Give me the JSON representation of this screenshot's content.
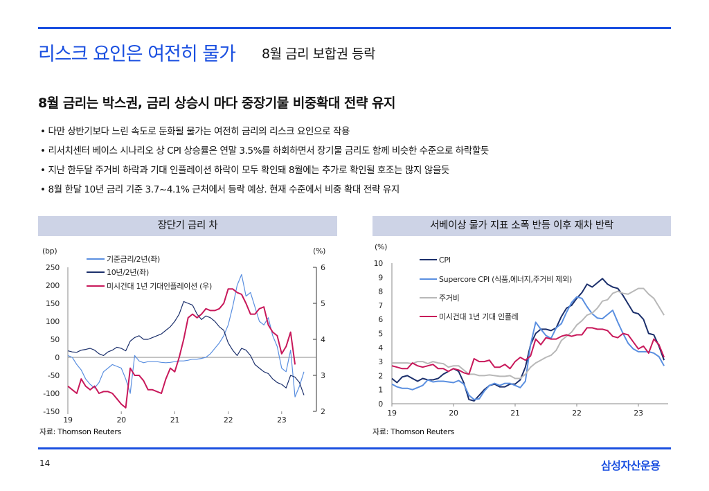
{
  "header": {
    "title_main": "리스크 요인은 여전히 물가",
    "title_sub": "8월 금리 보합권 등락",
    "subtitle": "8월 금리는 박스권, 금리 상승시 마다 중장기물 비중확대 전략 유지"
  },
  "bullets": [
    "• 다만 상반기보다 느린 속도로 둔화될 물가는 여전히 금리의 리스크 요인으로 작용",
    "• 리서치센터 베이스 시나리오 상 CPI 상승률은 연말 3.5%를 하회하면서 장기물 금리도 함께 비슷한 수준으로 하락할듯",
    "• 지난 한두달 주거비 하락과 기대 인플레이션 하락이 모두 확인돼 8월에는 추가로 확인될 호조는 많지 않을듯",
    "• 8월 한달 10년 금리 기준 3.7~4.1% 근처에서 등락 예상. 현재 수준에서 비중 확대 전략 유지"
  ],
  "footer": {
    "page": "14",
    "logo": "삼성자산운용"
  },
  "colors": {
    "accent": "#1a4fe0",
    "navy": "#1b2f6b",
    "light_blue": "#5a8fe0",
    "crimson": "#c8185a",
    "gray": "#b8b8b8",
    "header_bg": "#cdd3e6"
  },
  "chart_data": [
    {
      "type": "line",
      "title": "장단기 금리 차",
      "source": "자료: Thomson Reuters",
      "left_unit": "(bp)",
      "right_unit": "(%)",
      "x_ticks": [
        "19",
        "20",
        "21",
        "22",
        "23"
      ],
      "x_tick_values": [
        19,
        20,
        21,
        22,
        23
      ],
      "x_start": 19,
      "frequency": "monthly",
      "ylim_left": [
        -150,
        250
      ],
      "y_ticks_left": [
        250,
        200,
        150,
        100,
        50,
        0,
        -50,
        -100,
        -150
      ],
      "ylim_right": [
        2,
        6
      ],
      "y_ticks_right": [
        6,
        5,
        4,
        3,
        2
      ],
      "series": [
        {
          "name": "기준금리/2년(좌)",
          "axis": "left",
          "color": "#5a8fe0",
          "values": [
            5,
            0,
            -20,
            -35,
            -60,
            -75,
            -85,
            -70,
            -40,
            -30,
            -20,
            -25,
            -30,
            -60,
            -100,
            5,
            -10,
            -15,
            -12,
            -12,
            -12,
            -14,
            -15,
            -14,
            -12,
            -10,
            -10,
            -8,
            -5,
            -5,
            -3,
            0,
            10,
            25,
            40,
            60,
            90,
            140,
            200,
            230,
            170,
            180,
            140,
            100,
            90,
            110,
            60,
            30,
            -30,
            -40,
            20,
            -110,
            -80,
            -40
          ]
        },
        {
          "name": "10년/2년(좌)",
          "axis": "left",
          "color": "#1b2f6b",
          "values": [
            18,
            15,
            14,
            20,
            22,
            25,
            20,
            10,
            5,
            15,
            20,
            28,
            25,
            18,
            45,
            55,
            60,
            50,
            50,
            55,
            60,
            65,
            75,
            85,
            100,
            120,
            155,
            150,
            145,
            120,
            105,
            115,
            110,
            100,
            85,
            75,
            40,
            20,
            5,
            25,
            20,
            5,
            -20,
            -30,
            -40,
            -45,
            -60,
            -70,
            -75,
            -85,
            -50,
            -55,
            -70,
            -105
          ]
        },
        {
          "name": "미시건대 1년 기대인플레이션 (우)",
          "axis": "right",
          "color": "#c8185a",
          "values": [
            2.7,
            2.6,
            2.5,
            2.9,
            2.7,
            2.6,
            2.7,
            2.5,
            2.55,
            2.55,
            2.5,
            2.35,
            2.2,
            2.1,
            3.2,
            3.0,
            3.0,
            2.85,
            2.6,
            2.6,
            2.55,
            2.5,
            2.9,
            3.2,
            3.1,
            3.5,
            4.0,
            4.6,
            4.7,
            4.6,
            4.7,
            4.85,
            4.8,
            4.8,
            4.85,
            5.0,
            5.4,
            5.4,
            5.3,
            5.25,
            5.0,
            4.7,
            4.7,
            4.85,
            4.9,
            4.4,
            4.2,
            4.1,
            3.6,
            3.8,
            4.2,
            3.3
          ]
        }
      ]
    },
    {
      "type": "line",
      "title": "서베이상 물가 지표 소폭 반등 이후 재차 반락",
      "source": "자료: Thomson Reuters",
      "left_unit": "(%)",
      "x_ticks": [
        "19",
        "20",
        "21",
        "22",
        "23"
      ],
      "x_tick_values": [
        19,
        20,
        21,
        22,
        23
      ],
      "x_start": 19,
      "frequency": "monthly",
      "ylim": [
        0,
        10
      ],
      "y_ticks": [
        10,
        9,
        8,
        7,
        6,
        5,
        4,
        3,
        2,
        1,
        0
      ],
      "series": [
        {
          "name": "CPI",
          "color": "#1b2f6b",
          "values": [
            1.8,
            1.5,
            1.9,
            2.0,
            1.8,
            1.6,
            1.8,
            1.7,
            1.7,
            1.8,
            2.1,
            2.3,
            2.5,
            2.3,
            1.5,
            0.3,
            0.2,
            0.6,
            1.0,
            1.3,
            1.4,
            1.2,
            1.2,
            1.4,
            1.4,
            1.7,
            2.6,
            4.2,
            5.0,
            5.3,
            5.3,
            5.2,
            5.4,
            6.2,
            6.8,
            7.0,
            7.5,
            7.9,
            8.5,
            8.3,
            8.6,
            8.9,
            8.5,
            8.3,
            8.2,
            7.7,
            7.1,
            6.5,
            6.4,
            6.0,
            5.0,
            4.9,
            4.1,
            3.1
          ]
        },
        {
          "name": "Supercore CPI (식품,에너지,주거비 제외)",
          "color": "#5a8fe0",
          "values": [
            1.4,
            1.2,
            1.1,
            1.1,
            1.0,
            1.15,
            1.3,
            1.7,
            1.55,
            1.6,
            1.6,
            1.55,
            1.5,
            1.65,
            1.4,
            0.6,
            0.3,
            0.35,
            0.9,
            1.3,
            1.45,
            1.3,
            1.45,
            1.45,
            1.3,
            1.15,
            1.6,
            4.2,
            5.8,
            5.3,
            4.85,
            4.65,
            5.4,
            5.7,
            6.5,
            7.2,
            7.6,
            7.5,
            6.9,
            6.4,
            6.1,
            6.05,
            6.35,
            6.65,
            5.8,
            5.0,
            4.3,
            3.9,
            3.7,
            3.7,
            3.7,
            3.6,
            3.35,
            2.7
          ]
        },
        {
          "name": "주거비",
          "color": "#b8b8b8",
          "values": [
            2.9,
            2.9,
            2.9,
            2.9,
            2.85,
            3.0,
            3.0,
            2.85,
            3.0,
            2.9,
            2.85,
            2.6,
            2.7,
            2.7,
            2.4,
            2.1,
            2.1,
            2.0,
            2.0,
            2.05,
            2.0,
            1.95,
            1.95,
            2.0,
            1.8,
            1.8,
            2.1,
            2.6,
            2.9,
            3.1,
            3.3,
            3.45,
            3.8,
            4.5,
            4.8,
            5.1,
            5.6,
            5.9,
            6.3,
            6.45,
            6.8,
            7.3,
            7.4,
            7.85,
            8.0,
            7.85,
            7.8,
            8.0,
            8.2,
            8.2,
            7.8,
            7.5,
            6.9,
            6.3
          ]
        },
        {
          "name": "미시건대 1년 기대 인플레",
          "color": "#c8185a",
          "values": [
            2.7,
            2.6,
            2.5,
            2.5,
            2.9,
            2.7,
            2.6,
            2.7,
            2.8,
            2.5,
            2.5,
            2.3,
            2.5,
            2.4,
            2.2,
            2.1,
            3.2,
            3.0,
            3.0,
            3.1,
            2.6,
            2.6,
            2.8,
            2.5,
            3.0,
            3.3,
            3.1,
            3.4,
            4.6,
            4.2,
            4.7,
            4.6,
            4.6,
            4.8,
            4.9,
            4.8,
            4.9,
            4.9,
            5.4,
            5.4,
            5.3,
            5.3,
            5.2,
            4.8,
            4.7,
            5.0,
            4.9,
            4.4,
            3.9,
            4.1,
            3.6,
            4.6,
            4.2,
            3.3
          ]
        }
      ]
    }
  ]
}
